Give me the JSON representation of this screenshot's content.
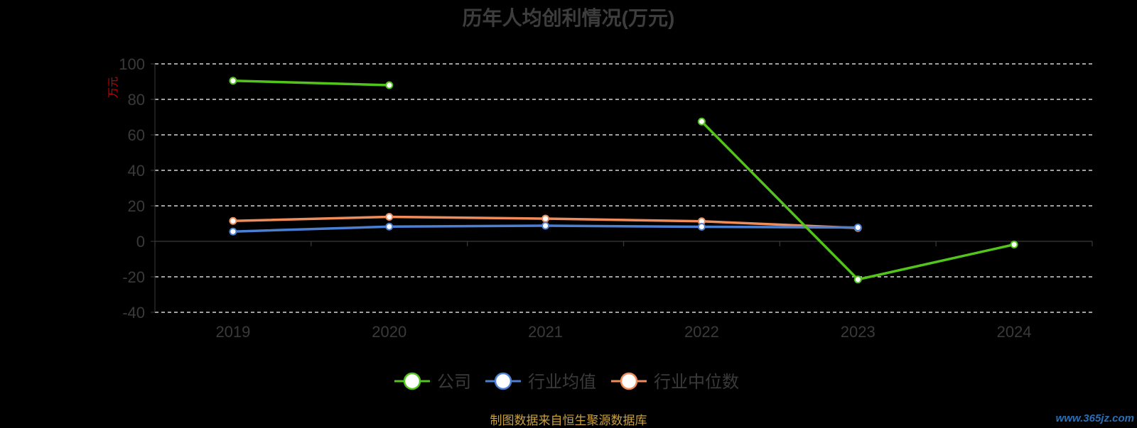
{
  "chart_data": {
    "type": "line",
    "title": "历年人均创利情况(万元)",
    "ylabel": "万元",
    "categories": [
      "2019",
      "2020",
      "2021",
      "2022",
      "2023",
      "2024"
    ],
    "ylim": [
      -40,
      100
    ],
    "yticks": [
      100,
      80,
      60,
      40,
      20,
      0,
      -20,
      -40
    ],
    "grid": true,
    "legend_position": "bottom",
    "series": [
      {
        "name": "公司",
        "color": "#52c41a",
        "values": [
          90.5,
          88.0,
          null,
          67.5,
          -21.5,
          -1.8
        ]
      },
      {
        "name": "行业均值",
        "color": "#4a7fd4",
        "values": [
          5.5,
          8.3,
          8.8,
          8.2,
          7.8,
          null
        ]
      },
      {
        "name": "行业中位数",
        "color": "#f08c5a",
        "values": [
          11.5,
          13.8,
          12.8,
          11.3,
          7.5,
          null
        ]
      }
    ]
  },
  "footer": {
    "source": "制图数据来自恒生聚源数据库"
  },
  "watermark": {
    "text": "www.365jz.com"
  },
  "colors": {
    "background": "#000000",
    "axis": "#3a3a3a",
    "tick_text": "#3a3a3a",
    "grid": "#ffffff",
    "ylabel": "#cc0000"
  }
}
